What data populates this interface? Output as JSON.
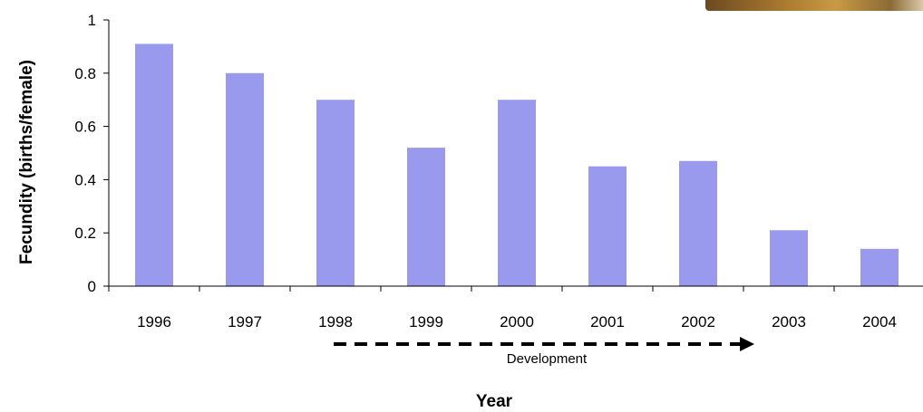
{
  "chart_data": {
    "type": "bar",
    "categories": [
      "1996",
      "1997",
      "1998",
      "1999",
      "2000",
      "2001",
      "2002",
      "2003",
      "2004"
    ],
    "values": [
      0.91,
      0.8,
      0.7,
      0.52,
      0.7,
      0.45,
      0.47,
      0.21,
      0.14
    ],
    "xlabel": "Year",
    "ylabel": "Fecundity (births/female)",
    "ylim": [
      0,
      1
    ],
    "yticks": [
      "0",
      "0.2",
      "0.4",
      "0.6",
      "0.8",
      "1"
    ],
    "grid": false,
    "bar_color": "#9999ee",
    "annotation": {
      "label": "Development",
      "from": "1998",
      "to": "2003",
      "style": "dashed arrow"
    }
  }
}
